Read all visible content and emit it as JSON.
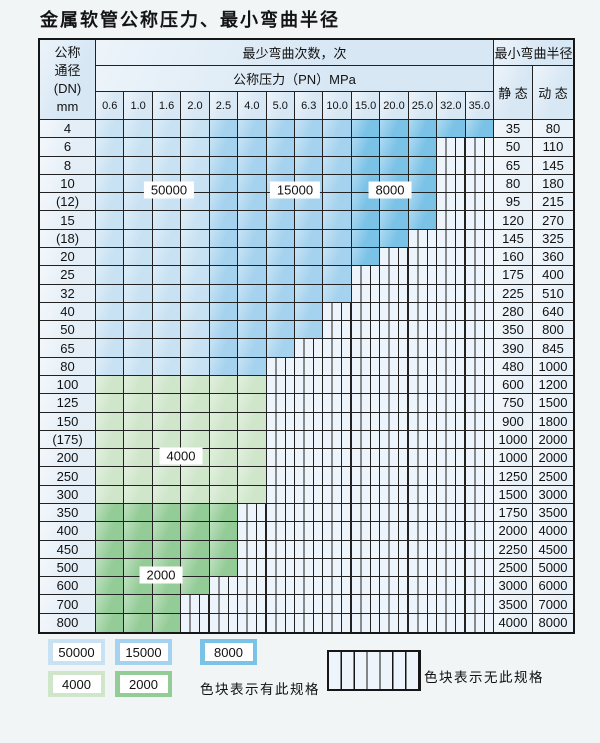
{
  "title": "金属软管公称压力、最小弯曲半径",
  "table": {
    "dn_header_lines": [
      "公称",
      "通径",
      "(DN)",
      "mm"
    ],
    "cycles_header": "最少弯曲次数，次",
    "pressure_header": "公称压力（PN）MPa",
    "radius_header": "最小弯曲半径",
    "static_label": "静 态",
    "dynamic_label": "动 态",
    "pressure_cols": [
      "0.6",
      "1.0",
      "1.6",
      "2.0",
      "2.5",
      "4.0",
      "5.0",
      "6.3",
      "10.0",
      "15.0",
      "20.0",
      "25.0",
      "32.0",
      "35.0"
    ],
    "shade_breaks": {
      "blue_light_end_index": 3,
      "blue_medium_end_index": 8
    },
    "rows": [
      {
        "dn": "4",
        "cols": 14,
        "shade": "blue",
        "st": "35",
        "dy": "80"
      },
      {
        "dn": "6",
        "cols": 12,
        "shade": "blue",
        "st": "50",
        "dy": "110"
      },
      {
        "dn": "8",
        "cols": 12,
        "shade": "blue",
        "st": "65",
        "dy": "145"
      },
      {
        "dn": "10",
        "cols": 12,
        "shade": "blue",
        "st": "80",
        "dy": "180"
      },
      {
        "dn": "(12)",
        "cols": 12,
        "shade": "blue",
        "st": "95",
        "dy": "215"
      },
      {
        "dn": "15",
        "cols": 12,
        "shade": "blue",
        "st": "120",
        "dy": "270"
      },
      {
        "dn": "(18)",
        "cols": 11,
        "shade": "blue",
        "st": "145",
        "dy": "325"
      },
      {
        "dn": "20",
        "cols": 10,
        "shade": "blue",
        "st": "160",
        "dy": "360"
      },
      {
        "dn": "25",
        "cols": 9,
        "shade": "blue",
        "st": "175",
        "dy": "400"
      },
      {
        "dn": "32",
        "cols": 9,
        "shade": "blue",
        "st": "225",
        "dy": "510"
      },
      {
        "dn": "40",
        "cols": 8,
        "shade": "blue",
        "st": "280",
        "dy": "640"
      },
      {
        "dn": "50",
        "cols": 8,
        "shade": "blue",
        "st": "350",
        "dy": "800"
      },
      {
        "dn": "65",
        "cols": 7,
        "shade": "blue",
        "st": "390",
        "dy": "845"
      },
      {
        "dn": "80",
        "cols": 6,
        "shade": "blue",
        "st": "480",
        "dy": "1000"
      },
      {
        "dn": "100",
        "cols": 6,
        "shade": "green4000",
        "st": "600",
        "dy": "1200"
      },
      {
        "dn": "125",
        "cols": 6,
        "shade": "green4000",
        "st": "750",
        "dy": "1500"
      },
      {
        "dn": "150",
        "cols": 6,
        "shade": "green4000",
        "st": "900",
        "dy": "1800"
      },
      {
        "dn": "(175)",
        "cols": 6,
        "shade": "green4000",
        "st": "1000",
        "dy": "2000"
      },
      {
        "dn": "200",
        "cols": 6,
        "shade": "green4000",
        "st": "1000",
        "dy": "2000"
      },
      {
        "dn": "250",
        "cols": 6,
        "shade": "green4000",
        "st": "1250",
        "dy": "2500"
      },
      {
        "dn": "300",
        "cols": 6,
        "shade": "green4000",
        "st": "1500",
        "dy": "3000"
      },
      {
        "dn": "350",
        "cols": 5,
        "shade": "green2000",
        "st": "1750",
        "dy": "3500"
      },
      {
        "dn": "400",
        "cols": 5,
        "shade": "green2000",
        "st": "2000",
        "dy": "4000"
      },
      {
        "dn": "450",
        "cols": 5,
        "shade": "green2000",
        "st": "2250",
        "dy": "4500"
      },
      {
        "dn": "500",
        "cols": 5,
        "shade": "green2000",
        "st": "2500",
        "dy": "5000"
      },
      {
        "dn": "600",
        "cols": 4,
        "shade": "green2000",
        "st": "3000",
        "dy": "6000"
      },
      {
        "dn": "700",
        "cols": 3,
        "shade": "green2000",
        "st": "3500",
        "dy": "7000"
      },
      {
        "dn": "800",
        "cols": 3,
        "shade": "green2000",
        "st": "4000",
        "dy": "8000"
      }
    ]
  },
  "overlay_labels": [
    "50000",
    "15000",
    "8000",
    "4000",
    "2000"
  ],
  "legend": {
    "items": [
      {
        "label": "50000",
        "color_key": "blue_light"
      },
      {
        "label": "15000",
        "color_key": "blue_medium"
      },
      {
        "label": "8000",
        "color_key": "blue_dark"
      },
      {
        "label": "4000",
        "color_key": "green_4000"
      },
      {
        "label": "2000",
        "color_key": "green_2000"
      }
    ],
    "has_spec_text": "色块表示有此规格",
    "no_spec_text": "色块表示无此规格"
  },
  "colors": {
    "blue_light": "#c9e2f3",
    "blue_medium": "#a5d2ee",
    "blue_dark": "#7bc2e7",
    "green_4000": "#cfe6ca",
    "green_2000": "#94cc97",
    "grid": "#222222",
    "header_bg": "#d7e7f4",
    "row_label_bg": "#e4eef7",
    "value_bg": "#e9f1f8",
    "striped_bg": "#edf4fb"
  }
}
